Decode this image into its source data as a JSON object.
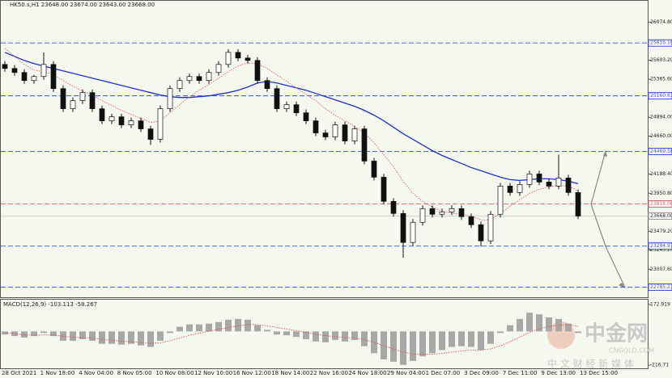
{
  "chart_data": {
    "type": "candlestick",
    "title": "HK50.s,H1  23648.00 23674.00 23643.00 23668.00",
    "ylim": [
      22660,
      26350
    ],
    "yticks": [
      {
        "value": 26074.8,
        "label": "26074.80"
      },
      {
        "value": 25603.2,
        "label": "25603.20"
      },
      {
        "value": 25365.6,
        "label": "25365.60"
      },
      {
        "value": 24894,
        "label": "24894.00"
      },
      {
        "value": 24660,
        "label": "24660.00"
      },
      {
        "value": 24188.4,
        "label": "24188.40"
      },
      {
        "value": 23950.8,
        "label": "23950.80"
      },
      {
        "value": 23479.2,
        "label": "23479.20"
      },
      {
        "value": 23245.2,
        "label": "23245.20"
      },
      {
        "value": 23007.6,
        "label": "23007.60"
      }
    ],
    "xlabels": [
      "28 Oct 2021",
      "1 Nov 18:00",
      "4 Nov 04:00",
      "8 Nov 05:00",
      "10 Nov 08:00",
      "12 Nov 10:00",
      "16 Nov 12:00",
      "18 Nov 14:00",
      "22 Nov 16:00",
      "24 Nov 18:00",
      "29 Nov 04:00",
      "1 Dec 07:00",
      "3 Dec 09:00",
      "7 Dec 11:00",
      "9 Dec 13:00",
      "13 Dec 15:00"
    ],
    "open": [
      25550,
      25500,
      25450,
      25350,
      25400,
      25550,
      25250,
      25000,
      25100,
      25200,
      25000,
      24850,
      24900,
      24800,
      24850,
      24750,
      24620,
      25000,
      25250,
      25350,
      25400,
      25350,
      25450,
      25550,
      25700,
      25630,
      25600,
      25350,
      25250,
      25000,
      25050,
      24950,
      24850,
      24700,
      24650,
      24800,
      24600,
      24750,
      24350,
      24150,
      23850,
      23700,
      23340,
      23590,
      23760,
      23690,
      23720,
      23760,
      23660,
      23560,
      23360,
      23690,
      24040,
      23960,
      24060,
      24190,
      24090,
      24040,
      24140,
      23960
    ],
    "high": [
      25590,
      25540,
      25490,
      25420,
      25700,
      25590,
      25290,
      25140,
      25240,
      25240,
      25040,
      24940,
      24940,
      24890,
      24890,
      24790,
      25040,
      25290,
      25390,
      25440,
      25440,
      25490,
      25590,
      25740,
      25740,
      25670,
      25640,
      25390,
      25290,
      25090,
      25090,
      24990,
      24890,
      24740,
      24840,
      24840,
      24790,
      24790,
      24390,
      24190,
      23890,
      23740,
      23630,
      23800,
      23800,
      23760,
      23800,
      23800,
      23700,
      23600,
      23730,
      24080,
      24080,
      24100,
      24230,
      24230,
      24130,
      24430,
      24180,
      24000
    ],
    "low": [
      25460,
      25410,
      25310,
      25310,
      25360,
      25210,
      24960,
      24960,
      25060,
      24960,
      24810,
      24810,
      24760,
      24760,
      24710,
      24550,
      24580,
      24960,
      25210,
      25310,
      25310,
      25310,
      25410,
      25510,
      25590,
      25560,
      25310,
      25210,
      24960,
      24960,
      24910,
      24810,
      24660,
      24610,
      24610,
      24560,
      24560,
      24310,
      24110,
      23810,
      23660,
      23150,
      23300,
      23550,
      23650,
      23650,
      23680,
      23620,
      23520,
      23290,
      23320,
      23650,
      23920,
      23920,
      24020,
      24050,
      24000,
      24000,
      23920,
      23630
    ],
    "close": [
      25500,
      25450,
      25350,
      25400,
      25550,
      25250,
      25000,
      25100,
      25200,
      25000,
      24850,
      24900,
      24800,
      24850,
      24750,
      24620,
      25000,
      25250,
      25350,
      25400,
      25350,
      25450,
      25550,
      25700,
      25630,
      25600,
      25350,
      25250,
      25000,
      25050,
      24950,
      24850,
      24700,
      24650,
      24800,
      24600,
      24750,
      24350,
      24150,
      23850,
      23700,
      23340,
      23590,
      23760,
      23690,
      23720,
      23760,
      23660,
      23560,
      23360,
      23690,
      24040,
      23960,
      24060,
      24190,
      24090,
      24040,
      24140,
      23960,
      23668
    ],
    "series": [
      {
        "color": "#1f2fd0",
        "values": [
          25700,
          25650,
          25600,
          25560,
          25530,
          25500,
          25470,
          25440,
          25410,
          25380,
          25350,
          25320,
          25290,
          25260,
          25230,
          25200,
          25170,
          25150,
          25140,
          25140,
          25150,
          25160,
          25180,
          25200,
          25230,
          25270,
          25320,
          25340,
          25320,
          25290,
          25260,
          25230,
          25190,
          25150,
          25110,
          25070,
          25030,
          24980,
          24920,
          24850,
          24770,
          24690,
          24620,
          24550,
          24480,
          24420,
          24370,
          24320,
          24270,
          24230,
          24190,
          24150,
          24120,
          24110,
          24120,
          24130,
          24130,
          24120,
          24100,
          24070
        ]
      },
      {
        "color": "#e05050",
        "values": [
          25750,
          25650,
          25550,
          25480,
          25460,
          25420,
          25350,
          25280,
          25220,
          25170,
          25100,
          25040,
          24980,
          24930,
          24880,
          24830,
          24850,
          24950,
          25050,
          25150,
          25230,
          25300,
          25380,
          25460,
          25530,
          25570,
          25560,
          25500,
          25420,
          25340,
          25260,
          25180,
          25100,
          25000,
          24920,
          24850,
          24780,
          24700,
          24580,
          24430,
          24280,
          24100,
          23950,
          23850,
          23780,
          23730,
          23700,
          23690,
          23670,
          23620,
          23620,
          23700,
          23790,
          23870,
          23950,
          24000,
          24030,
          24050,
          24040,
          23980
        ]
      }
    ],
    "levels": [
      {
        "price": 25816.19,
        "color": "#3a4fd8"
      },
      {
        "price": 25160.63,
        "color": "#3a4fd8"
      },
      {
        "price": 24469.58,
        "color": "#3a4fd8"
      },
      {
        "price": {
          "value": 23818,
          "label": "23818.00"
        },
        "color": "#e06060"
      },
      {
        "price": 23294.97,
        "color": "#3a4fd8"
      },
      {
        "price": 22785.21,
        "color": "#3a4fd8"
      }
    ],
    "current": {
      "value": 23668,
      "label": "23668.00"
    },
    "macd": {
      "title": "MACD(12,26,9) -103.113 -58.267",
      "ylim": [
        -232,
        199
      ],
      "yticks": [
        172.919,
        -216.71
      ],
      "histogram": [
        -20,
        -30,
        -40,
        -30,
        -10,
        -30,
        -60,
        -60,
        -50,
        -60,
        -80,
        -80,
        -85,
        -80,
        -90,
        -100,
        -60,
        -10,
        30,
        45,
        45,
        50,
        60,
        75,
        80,
        75,
        40,
        10,
        -20,
        -25,
        -35,
        -50,
        -65,
        -70,
        -55,
        -65,
        -55,
        -95,
        -140,
        -180,
        -195,
        -215,
        -190,
        -160,
        -140,
        -120,
        -100,
        -95,
        -100,
        -120,
        -80,
        -10,
        40,
        80,
        120,
        110,
        90,
        80,
        50,
        -10
      ],
      "signal": [
        -10,
        -15,
        -22,
        -25,
        -22,
        -24,
        -31,
        -37,
        -40,
        -44,
        -51,
        -57,
        -62,
        -66,
        -70,
        -76,
        -73,
        -60,
        -42,
        -25,
        -11,
        1,
        13,
        25,
        36,
        44,
        43,
        36,
        25,
        15,
        5,
        -6,
        -18,
        -28,
        -33,
        -39,
        -42,
        -53,
        -70,
        -92,
        -113,
        -133,
        -145,
        -148,
        -146,
        -141,
        -133,
        -125,
        -120,
        -120,
        -112,
        -92,
        -66,
        -37,
        -6,
        17,
        32,
        41,
        43,
        32
      ],
      "signal_color": "#e05050"
    },
    "watermark": {
      "name": "中金网",
      "site": "CNGOLD.COM",
      "tagline": "中 文 财 经 新 媒 体"
    }
  }
}
